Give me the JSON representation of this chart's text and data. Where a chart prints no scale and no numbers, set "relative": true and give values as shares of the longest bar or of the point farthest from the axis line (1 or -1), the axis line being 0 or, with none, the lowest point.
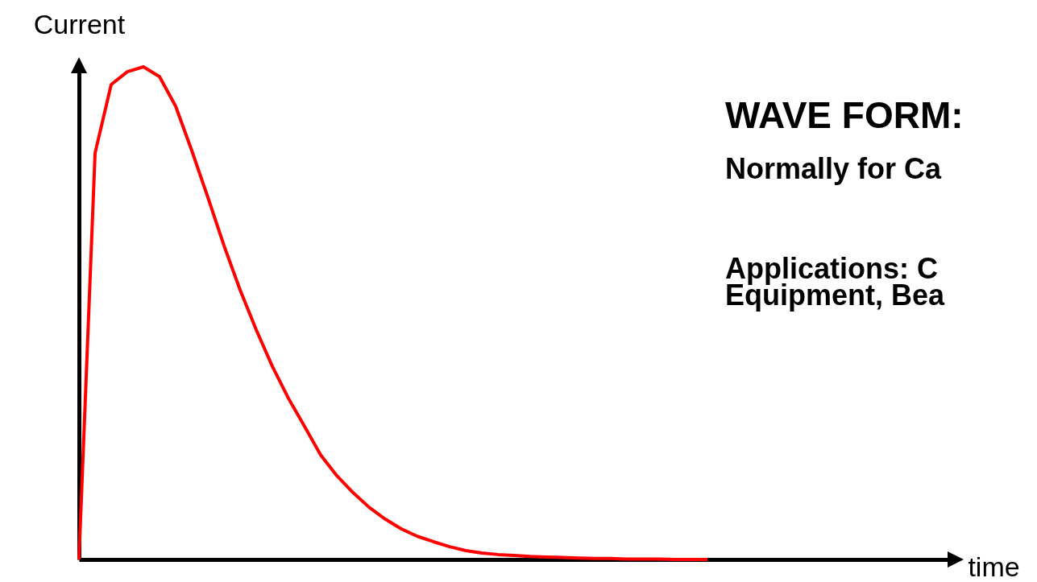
{
  "chart_data": {
    "type": "line",
    "relative": true,
    "xlabel": "time",
    "ylabel": "Current",
    "tick_labels": false,
    "grid": false,
    "marker": "none",
    "line_style": "solid",
    "annotations": [
      "WAVE FORM:",
      "Normally for Ca",
      "Applications:  C",
      "Equipment, Bea"
    ],
    "categories": [
      null,
      null,
      null,
      null,
      null,
      null,
      null,
      null,
      null,
      null,
      null,
      null,
      null,
      null,
      null,
      null,
      null,
      null,
      null,
      null,
      null,
      null,
      null,
      null,
      null,
      null,
      null,
      null,
      null,
      null,
      null,
      null,
      null,
      null,
      null,
      null,
      null,
      null,
      null,
      null,
      null,
      null,
      null,
      null,
      null,
      null,
      null,
      null,
      null,
      null,
      null,
      null,
      null,
      null,
      null
    ],
    "series": [
      {
        "color": "#ff0000",
        "values": [
          0,
          0.825,
          0.964,
          0.99,
          1,
          0.98,
          0.92,
          0.83,
          0.735,
          0.637,
          0.547,
          0.466,
          0.392,
          0.327,
          0.27,
          0.212,
          0.17,
          0.136,
          0.106,
          0.082,
          0.062,
          0.047,
          0.036,
          0.026,
          0.018,
          0.013,
          0.01,
          0.008,
          0.006,
          0.005,
          0.004,
          0.003,
          0.002,
          0.002,
          0.001,
          0.001,
          0.001,
          0,
          0,
          0,
          null,
          null,
          null,
          null,
          null,
          null,
          null,
          null,
          null,
          null,
          null,
          null,
          null,
          null,
          null
        ]
      }
    ]
  }
}
